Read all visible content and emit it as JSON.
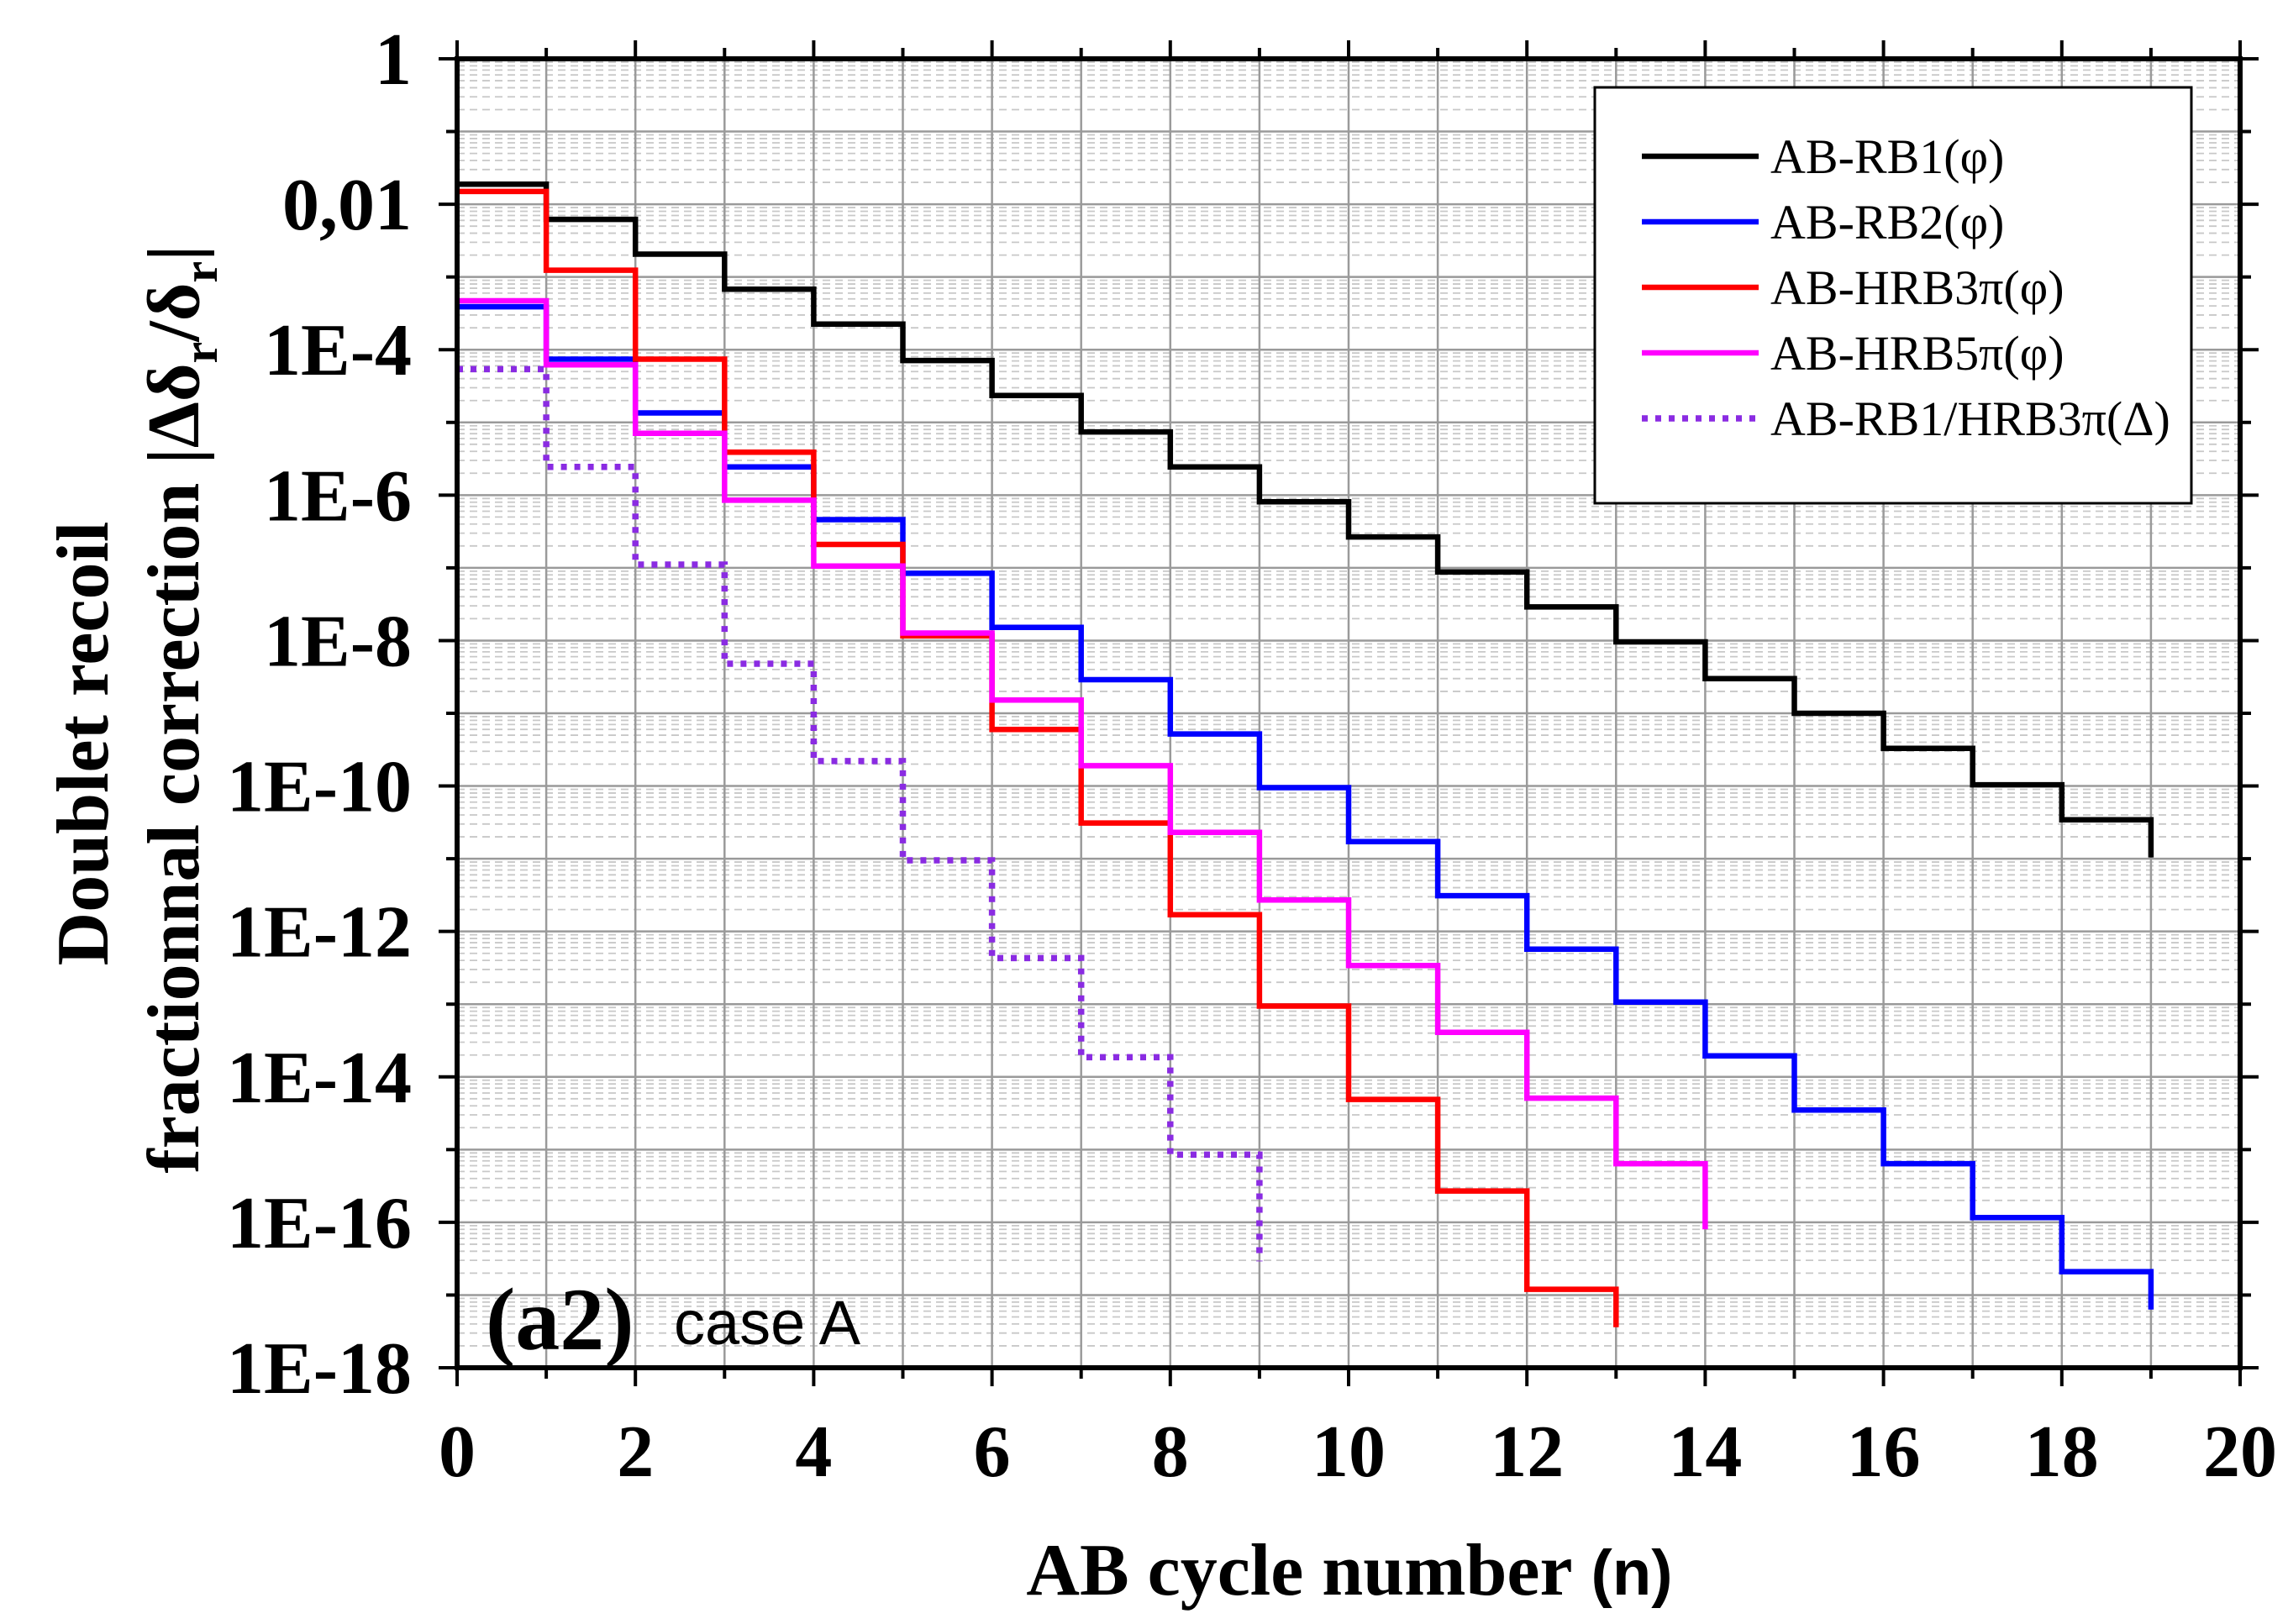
{
  "chart_data": {
    "type": "line",
    "xlabel": "AB cycle number",
    "xlabel_unit": "(n)",
    "ylabel_line1": "Doublet recoil",
    "ylabel_line2": {
      "text": "fractionnal correction |Δδ",
      "sub1": "r",
      "mid": "/δ",
      "sub2": "r",
      "end": "|"
    },
    "xlim": [
      0,
      20
    ],
    "ylim": [
      1e-18,
      1
    ],
    "log_y": true,
    "grid": true,
    "legend_position": "top-right",
    "xticks": [
      0,
      2,
      4,
      6,
      8,
      10,
      12,
      14,
      16,
      18,
      20
    ],
    "xtick_labels": [
      "0",
      "2",
      "4",
      "6",
      "8",
      "10",
      "12",
      "14",
      "16",
      "18",
      "20"
    ],
    "yticks": [
      1,
      0.01,
      0.0001,
      1e-06,
      1e-08,
      1e-10,
      1e-12,
      1e-14,
      1e-16,
      1e-18
    ],
    "ytick_labels": [
      "1",
      "0,01",
      "1E-4",
      "1E-6",
      "1E-8",
      "1E-10",
      "1E-12",
      "1E-14",
      "1E-16",
      "1E-18"
    ],
    "series": [
      {
        "name": "AB-RB1(φ)",
        "color": "#000000",
        "dotted": false,
        "x": [
          0,
          1,
          2,
          3,
          4,
          5,
          6,
          7,
          8,
          9,
          10,
          11,
          12,
          13,
          14,
          15,
          16,
          17,
          18,
          19
        ],
        "y": [
          0.0189,
          0.0062,
          0.00206,
          0.00068,
          0.000225,
          7.1e-05,
          2.34e-05,
          7.4e-06,
          2.44e-06,
          8.1e-07,
          2.66e-07,
          8.8e-08,
          2.9e-08,
          9.6e-09,
          3e-09,
          1e-09,
          3.3e-10,
          1.04e-10,
          3.44e-11,
          1.04e-11
        ]
      },
      {
        "name": "AB-RB2(φ)",
        "color": "#0000ff",
        "dotted": false,
        "x": [
          0,
          1,
          2,
          3,
          4,
          5,
          6,
          7,
          8,
          9,
          10,
          11,
          12,
          13,
          14,
          15,
          16,
          17,
          18,
          19
        ],
        "y": [
          0.00039,
          7.4e-05,
          1.35e-05,
          2.44e-06,
          4.6e-07,
          8.4e-08,
          1.52e-08,
          2.9e-09,
          5.2e-10,
          9.5e-11,
          1.72e-11,
          3.1e-12,
          5.7e-13,
          1.07e-13,
          1.95e-14,
          3.5e-15,
          6.4e-16,
          1.16e-16,
          2.1e-17,
          6.3e-18
        ]
      },
      {
        "name": "AB-HRB3π(φ)",
        "color": "#ff0000",
        "dotted": false,
        "x": [
          0,
          1,
          2,
          3,
          4,
          5,
          6,
          7,
          8,
          9,
          10,
          11,
          12,
          13
        ],
        "y": [
          0.015,
          0.00124,
          7.4e-05,
          3.9e-06,
          2.1e-07,
          1.16e-08,
          6e-10,
          3.1e-11,
          1.7e-12,
          9.4e-14,
          4.9e-15,
          2.7e-16,
          1.2e-17,
          3.6e-18
        ]
      },
      {
        "name": "AB-HRB5π(φ)",
        "color": "#ff00ff",
        "dotted": false,
        "x": [
          0,
          1,
          2,
          3,
          4,
          5,
          6,
          7,
          8,
          9,
          10,
          11,
          12,
          13,
          14
        ],
        "y": [
          0.00047,
          6.2e-05,
          7.1e-06,
          8.5e-07,
          1.06e-07,
          1.27e-08,
          1.52e-09,
          1.9e-10,
          2.3e-11,
          2.7e-12,
          3.4e-13,
          4.1e-14,
          5.1e-15,
          6.4e-16,
          8e-17
        ]
      },
      {
        "name": "AB-RB1/HRB3π(Δ)",
        "color": "#8a2be2",
        "dotted": true,
        "x": [
          0,
          1,
          2,
          3,
          4,
          5,
          6,
          7,
          8,
          9
        ],
        "y": [
          5.4e-05,
          2.44e-06,
          1.11e-07,
          4.8e-09,
          2.2e-10,
          9.5e-12,
          4.3e-13,
          1.86e-14,
          8.5e-16,
          2.9e-17
        ]
      }
    ],
    "annotations": {
      "panel": "(a2)",
      "case": "case A"
    }
  }
}
